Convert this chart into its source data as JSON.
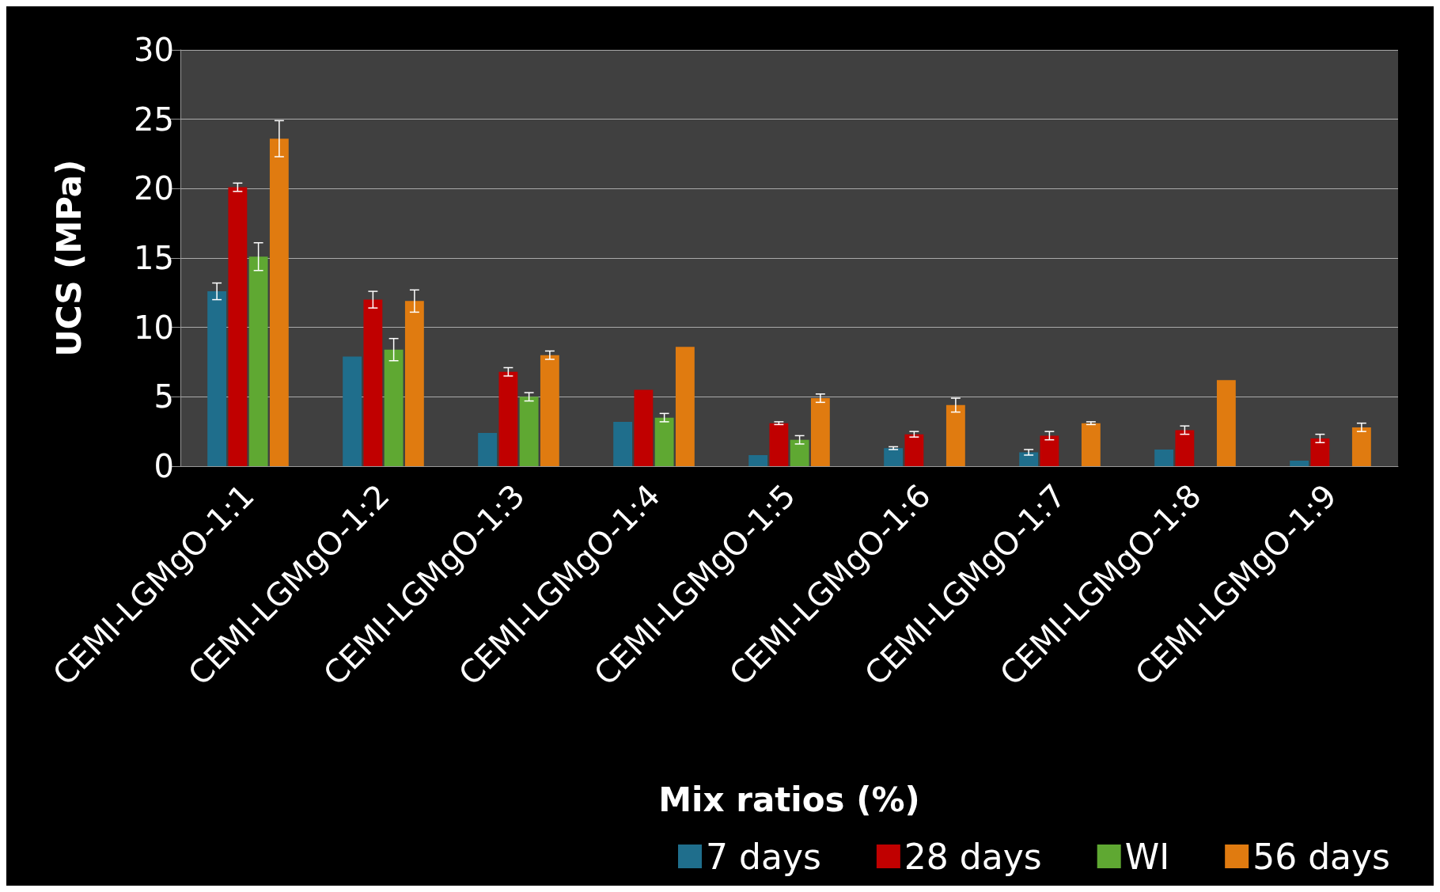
{
  "chart_data": {
    "type": "bar",
    "xlabel": "Mix ratios (%)",
    "ylabel": "UCS (MPa)",
    "categories": [
      "CEMI-LGMgO-1:1",
      "CEMI-LGMgO-1:2",
      "CEMI-LGMgO-1:3",
      "CEMI-LGMgO-1:4",
      "CEMI-LGMgO-1:5",
      "CEMI-LGMgO-1:6",
      "CEMI-LGMgO-1:7",
      "CEMI-LGMgO-1:8",
      "CEMI-LGMgO-1:9"
    ],
    "series": [
      {
        "name": "7 days",
        "color": "#1f6e8c",
        "values": [
          12.6,
          7.9,
          2.4,
          3.2,
          0.8,
          1.3,
          1.0,
          1.2,
          0.4
        ],
        "errors": [
          0.6,
          null,
          null,
          null,
          null,
          0.1,
          0.2,
          null,
          null
        ]
      },
      {
        "name": "28 days",
        "color": "#c00000",
        "values": [
          20.1,
          12.0,
          6.8,
          5.5,
          3.1,
          2.3,
          2.2,
          2.6,
          2.0
        ],
        "errors": [
          0.3,
          0.6,
          0.3,
          null,
          0.1,
          0.2,
          0.3,
          0.3,
          0.3
        ]
      },
      {
        "name": "WI",
        "color": "#5fa832",
        "values": [
          15.1,
          8.4,
          5.0,
          3.5,
          1.9,
          null,
          null,
          null,
          null
        ],
        "errors": [
          1.0,
          0.8,
          0.3,
          0.3,
          0.3,
          null,
          null,
          null,
          null
        ]
      },
      {
        "name": "56 days",
        "color": "#e07b10",
        "values": [
          23.6,
          11.9,
          8.0,
          8.6,
          4.9,
          4.4,
          3.1,
          6.2,
          2.8
        ],
        "errors": [
          1.3,
          0.8,
          0.3,
          null,
          0.3,
          0.5,
          0.1,
          null,
          0.3
        ]
      }
    ],
    "ylim": [
      0,
      30
    ],
    "yticks": [
      0,
      5,
      10,
      15,
      20,
      25,
      30
    ],
    "grid": "y",
    "legend": "bottom right"
  }
}
